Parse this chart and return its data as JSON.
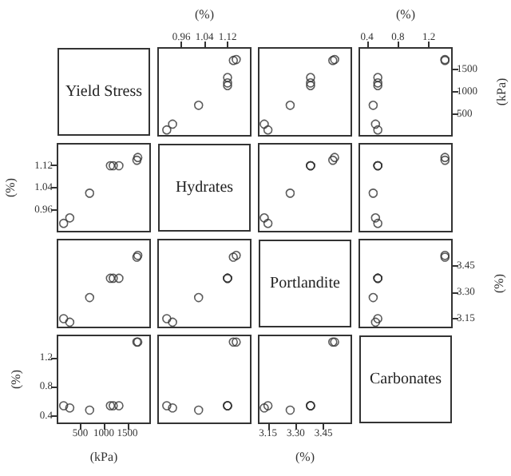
{
  "chart_data": [
    {
      "type": "other",
      "title": "Yield Stress"
    },
    {
      "type": "scatter",
      "x": [
        0.91,
        0.93,
        1.02,
        1.12,
        1.12,
        1.12,
        1.14,
        1.15
      ],
      "values": [
        150,
        280,
        700,
        1140,
        1200,
        1320,
        1700,
        1720
      ],
      "xlim": [
        0.88,
        1.2
      ],
      "xticks": [
        0.96,
        1.04,
        1.12
      ],
      "xlabel": "(%)",
      "ylim": [
        20,
        1980
      ],
      "marker": "circle",
      "color": "#333333",
      "tick_labels": "x"
    },
    {
      "type": "scatter",
      "x": [
        3.15,
        3.13,
        3.27,
        3.38,
        3.38,
        3.38,
        3.5,
        3.51
      ],
      "values": [
        150,
        280,
        700,
        1140,
        1200,
        1320,
        1700,
        1720
      ],
      "xlim": [
        3.1,
        3.6
      ],
      "ylim": [
        20,
        1980
      ],
      "marker": "circle",
      "color": "#333333",
      "tick_labels": false
    },
    {
      "type": "scatter",
      "x": [
        0.54,
        0.51,
        0.48,
        0.54,
        0.54,
        0.54,
        1.41,
        1.41
      ],
      "values": [
        150,
        280,
        700,
        1140,
        1200,
        1320,
        1700,
        1720
      ],
      "xlim": [
        0.3,
        1.5
      ],
      "xticks": [
        0.4,
        0.8,
        1.2
      ],
      "xlabel": "(%)",
      "ylim": [
        20,
        1980
      ],
      "yticks": [
        500,
        1000,
        1500
      ],
      "ylabel": "(kPa)",
      "marker": "circle",
      "color": "#333333"
    },
    {
      "type": "scatter",
      "x": [
        150,
        280,
        700,
        1140,
        1200,
        1320,
        1700,
        1720
      ],
      "values": [
        0.91,
        0.93,
        1.02,
        1.12,
        1.12,
        1.12,
        1.14,
        1.15
      ],
      "xlim": [
        20,
        1980
      ],
      "ylim": [
        0.88,
        1.2
      ],
      "yticks": [
        0.96,
        1.04,
        1.12
      ],
      "ylabel": "(%)",
      "marker": "circle",
      "color": "#333333",
      "tick_labels": "y"
    },
    {
      "type": "other",
      "title": "Hydrates"
    },
    {
      "type": "scatter",
      "x": [
        3.15,
        3.13,
        3.27,
        3.38,
        3.38,
        3.38,
        3.5,
        3.51
      ],
      "values": [
        0.91,
        0.93,
        1.02,
        1.12,
        1.12,
        1.12,
        1.14,
        1.15
      ],
      "xlim": [
        3.1,
        3.6
      ],
      "ylim": [
        0.88,
        1.2
      ],
      "marker": "circle",
      "color": "#333333",
      "tick_labels": false
    },
    {
      "type": "scatter",
      "x": [
        0.54,
        0.51,
        0.48,
        0.54,
        0.54,
        0.54,
        1.41,
        1.41
      ],
      "values": [
        0.91,
        0.93,
        1.02,
        1.12,
        1.12,
        1.12,
        1.14,
        1.15
      ],
      "xlim": [
        0.3,
        1.5
      ],
      "ylim": [
        0.88,
        1.2
      ],
      "marker": "circle",
      "color": "#333333",
      "tick_labels": false
    },
    {
      "type": "scatter",
      "x": [
        150,
        280,
        700,
        1140,
        1200,
        1320,
        1700,
        1720
      ],
      "values": [
        3.15,
        3.13,
        3.27,
        3.38,
        3.38,
        3.38,
        3.5,
        3.51
      ],
      "xlim": [
        20,
        1980
      ],
      "ylim": [
        3.1,
        3.6
      ],
      "marker": "circle",
      "color": "#333333",
      "tick_labels": false
    },
    {
      "type": "scatter",
      "x": [
        0.91,
        0.93,
        1.02,
        1.12,
        1.12,
        1.12,
        1.14,
        1.15
      ],
      "values": [
        3.15,
        3.13,
        3.27,
        3.38,
        3.38,
        3.38,
        3.5,
        3.51
      ],
      "xlim": [
        0.88,
        1.2
      ],
      "ylim": [
        3.1,
        3.6
      ],
      "marker": "circle",
      "color": "#333333",
      "tick_labels": false
    },
    {
      "type": "other",
      "title": "Portlandite"
    },
    {
      "type": "scatter",
      "x": [
        0.54,
        0.51,
        0.48,
        0.54,
        0.54,
        0.54,
        1.41,
        1.41
      ],
      "values": [
        3.15,
        3.13,
        3.27,
        3.38,
        3.38,
        3.38,
        3.5,
        3.51
      ],
      "xlim": [
        0.3,
        1.5
      ],
      "ylim": [
        3.1,
        3.6
      ],
      "yticks": [
        3.15,
        {
          "value": 3.3,
          "label": "3.30"
        },
        3.45
      ],
      "ylabel": "(%)",
      "marker": "circle",
      "color": "#333333",
      "tick_labels": "y"
    },
    {
      "type": "scatter",
      "x": [
        150,
        280,
        700,
        1140,
        1200,
        1320,
        1700,
        1720
      ],
      "values": [
        0.54,
        0.51,
        0.48,
        0.54,
        0.54,
        0.54,
        1.41,
        1.41
      ],
      "xlim": [
        20,
        1980
      ],
      "xticks": [
        500,
        1000,
        1500
      ],
      "xlabel": "(kPa)",
      "ylim": [
        0.3,
        1.5
      ],
      "yticks": [
        0.4,
        0.8,
        1.2
      ],
      "ylabel": "(%)",
      "marker": "circle",
      "color": "#333333"
    },
    {
      "type": "scatter",
      "x": [
        0.91,
        0.93,
        1.02,
        1.12,
        1.12,
        1.12,
        1.14,
        1.15
      ],
      "values": [
        0.54,
        0.51,
        0.48,
        0.54,
        0.54,
        0.54,
        1.41,
        1.41
      ],
      "xlim": [
        0.88,
        1.2
      ],
      "ylim": [
        0.3,
        1.5
      ],
      "marker": "circle",
      "color": "#333333",
      "tick_labels": false
    },
    {
      "type": "scatter",
      "x": [
        3.15,
        3.13,
        3.27,
        3.38,
        3.38,
        3.38,
        3.5,
        3.51
      ],
      "values": [
        0.54,
        0.51,
        0.48,
        0.54,
        0.54,
        0.54,
        1.41,
        1.41
      ],
      "xlim": [
        3.1,
        3.6
      ],
      "xticks": [
        3.15,
        {
          "value": 3.3,
          "label": "3.30"
        },
        3.45
      ],
      "xlabel": "(%)",
      "ylim": [
        0.3,
        1.5
      ],
      "marker": "circle",
      "color": "#333333",
      "tick_labels": "x"
    },
    {
      "type": "other",
      "title": "Carbonates"
    }
  ]
}
